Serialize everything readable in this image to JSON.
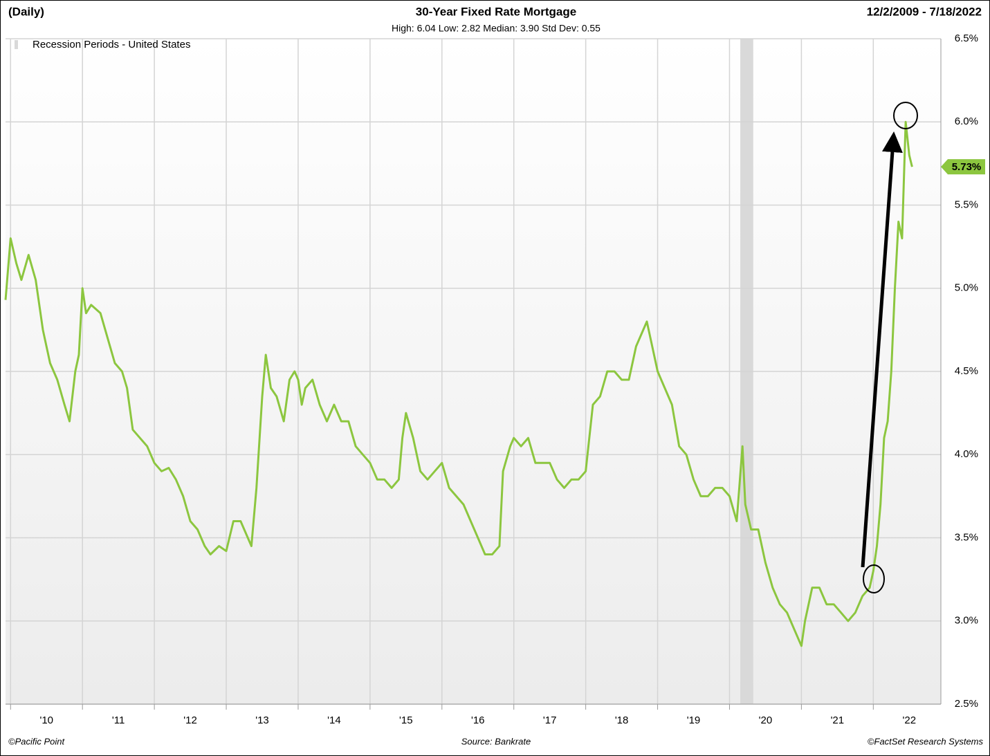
{
  "chart_data": {
    "type": "line",
    "title": "30-Year Fixed Rate Mortgage",
    "subtitle": "High: 6.04 Low: 2.82 Median: 3.90 Std Dev: 0.55",
    "frequency": "(Daily)",
    "date_range": "12/2/2009 - 7/18/2022",
    "legend": "Recession Periods - United States",
    "source": "Source: Bankrate",
    "footer_left": "©Pacific Point",
    "footer_right": "©FactSet Research Systems",
    "color": "#8cc63f",
    "recession_color": "#d9d9d9",
    "recession_periods": [
      [
        2020.15,
        2020.33
      ]
    ],
    "current_value": {
      "value": 5.73,
      "label": "5.73%"
    },
    "grid": true,
    "xlim": [
      2009.93,
      2022.94
    ],
    "ylim": [
      2.5,
      6.5
    ],
    "xticks": [
      {
        "value": 2010,
        "label": "'10"
      },
      {
        "value": 2011,
        "label": "'11"
      },
      {
        "value": 2012,
        "label": "'12"
      },
      {
        "value": 2013,
        "label": "'13"
      },
      {
        "value": 2014,
        "label": "'14"
      },
      {
        "value": 2015,
        "label": "'15"
      },
      {
        "value": 2016,
        "label": "'16"
      },
      {
        "value": 2017,
        "label": "'17"
      },
      {
        "value": 2018,
        "label": "'18"
      },
      {
        "value": 2019,
        "label": "'19"
      },
      {
        "value": 2020,
        "label": "'20"
      },
      {
        "value": 2021,
        "label": "'21"
      },
      {
        "value": 2022,
        "label": "'22"
      }
    ],
    "yticks": [
      {
        "value": 2.5,
        "label": "2.5%"
      },
      {
        "value": 3.0,
        "label": "3.0%"
      },
      {
        "value": 3.5,
        "label": "3.5%"
      },
      {
        "value": 4.0,
        "label": "4.0%"
      },
      {
        "value": 4.5,
        "label": "4.5%"
      },
      {
        "value": 5.0,
        "label": "5.0%"
      },
      {
        "value": 5.5,
        "label": "5.5%"
      },
      {
        "value": 6.0,
        "label": "6.0%"
      },
      {
        "value": 6.5,
        "label": "6.5%"
      }
    ],
    "x": [
      2009.93,
      2010.0,
      2010.08,
      2010.15,
      2010.25,
      2010.35,
      2010.45,
      2010.55,
      2010.65,
      2010.75,
      2010.82,
      2010.9,
      2010.95,
      2011.0,
      2011.05,
      2011.12,
      2011.25,
      2011.35,
      2011.45,
      2011.55,
      2011.62,
      2011.7,
      2011.8,
      2011.9,
      2012.0,
      2012.1,
      2012.2,
      2012.3,
      2012.4,
      2012.5,
      2012.6,
      2012.7,
      2012.78,
      2012.9,
      2013.0,
      2013.1,
      2013.2,
      2013.35,
      2013.42,
      2013.5,
      2013.55,
      2013.62,
      2013.7,
      2013.8,
      2013.88,
      2013.95,
      2014.0,
      2014.05,
      2014.1,
      2014.2,
      2014.3,
      2014.4,
      2014.5,
      2014.6,
      2014.7,
      2014.8,
      2014.9,
      2015.0,
      2015.1,
      2015.2,
      2015.3,
      2015.4,
      2015.45,
      2015.5,
      2015.6,
      2015.7,
      2015.8,
      2015.9,
      2016.0,
      2016.1,
      2016.2,
      2016.3,
      2016.4,
      2016.5,
      2016.6,
      2016.7,
      2016.8,
      2016.85,
      2016.95,
      2017.0,
      2017.1,
      2017.2,
      2017.3,
      2017.4,
      2017.5,
      2017.6,
      2017.7,
      2017.8,
      2017.9,
      2018.0,
      2018.1,
      2018.2,
      2018.3,
      2018.4,
      2018.5,
      2018.6,
      2018.7,
      2018.8,
      2018.85,
      2018.95,
      2019.0,
      2019.1,
      2019.2,
      2019.3,
      2019.4,
      2019.5,
      2019.6,
      2019.7,
      2019.8,
      2019.9,
      2020.0,
      2020.1,
      2020.18,
      2020.22,
      2020.3,
      2020.4,
      2020.5,
      2020.6,
      2020.7,
      2020.8,
      2020.9,
      2021.0,
      2021.05,
      2021.15,
      2021.25,
      2021.35,
      2021.45,
      2021.55,
      2021.65,
      2021.75,
      2021.85,
      2021.95,
      2022.0,
      2022.05,
      2022.1,
      2022.15,
      2022.2,
      2022.25,
      2022.3,
      2022.35,
      2022.4,
      2022.45,
      2022.5,
      2022.54
    ],
    "values": [
      4.93,
      5.3,
      5.15,
      5.05,
      5.2,
      5.05,
      4.75,
      4.55,
      4.45,
      4.3,
      4.2,
      4.5,
      4.6,
      5.0,
      4.85,
      4.9,
      4.85,
      4.7,
      4.55,
      4.5,
      4.4,
      4.15,
      4.1,
      4.05,
      3.95,
      3.9,
      3.92,
      3.85,
      3.75,
      3.6,
      3.55,
      3.45,
      3.4,
      3.45,
      3.42,
      3.6,
      3.6,
      3.45,
      3.8,
      4.35,
      4.6,
      4.4,
      4.35,
      4.2,
      4.45,
      4.5,
      4.45,
      4.3,
      4.4,
      4.45,
      4.3,
      4.2,
      4.3,
      4.2,
      4.2,
      4.05,
      4.0,
      3.95,
      3.85,
      3.85,
      3.8,
      3.85,
      4.1,
      4.25,
      4.1,
      3.9,
      3.85,
      3.9,
      3.95,
      3.8,
      3.75,
      3.7,
      3.6,
      3.5,
      3.4,
      3.4,
      3.45,
      3.9,
      4.05,
      4.1,
      4.05,
      4.1,
      3.95,
      3.95,
      3.95,
      3.85,
      3.8,
      3.85,
      3.85,
      3.9,
      4.3,
      4.35,
      4.5,
      4.5,
      4.45,
      4.45,
      4.65,
      4.75,
      4.8,
      4.6,
      4.5,
      4.4,
      4.3,
      4.05,
      4.0,
      3.85,
      3.75,
      3.75,
      3.8,
      3.8,
      3.75,
      3.6,
      4.05,
      3.7,
      3.55,
      3.55,
      3.35,
      3.2,
      3.1,
      3.05,
      2.95,
      2.85,
      3.0,
      3.2,
      3.2,
      3.1,
      3.1,
      3.05,
      3.0,
      3.05,
      3.15,
      3.2,
      3.3,
      3.45,
      3.7,
      4.1,
      4.2,
      4.5,
      5.0,
      5.4,
      5.3,
      6.0,
      5.8,
      5.73
    ]
  }
}
